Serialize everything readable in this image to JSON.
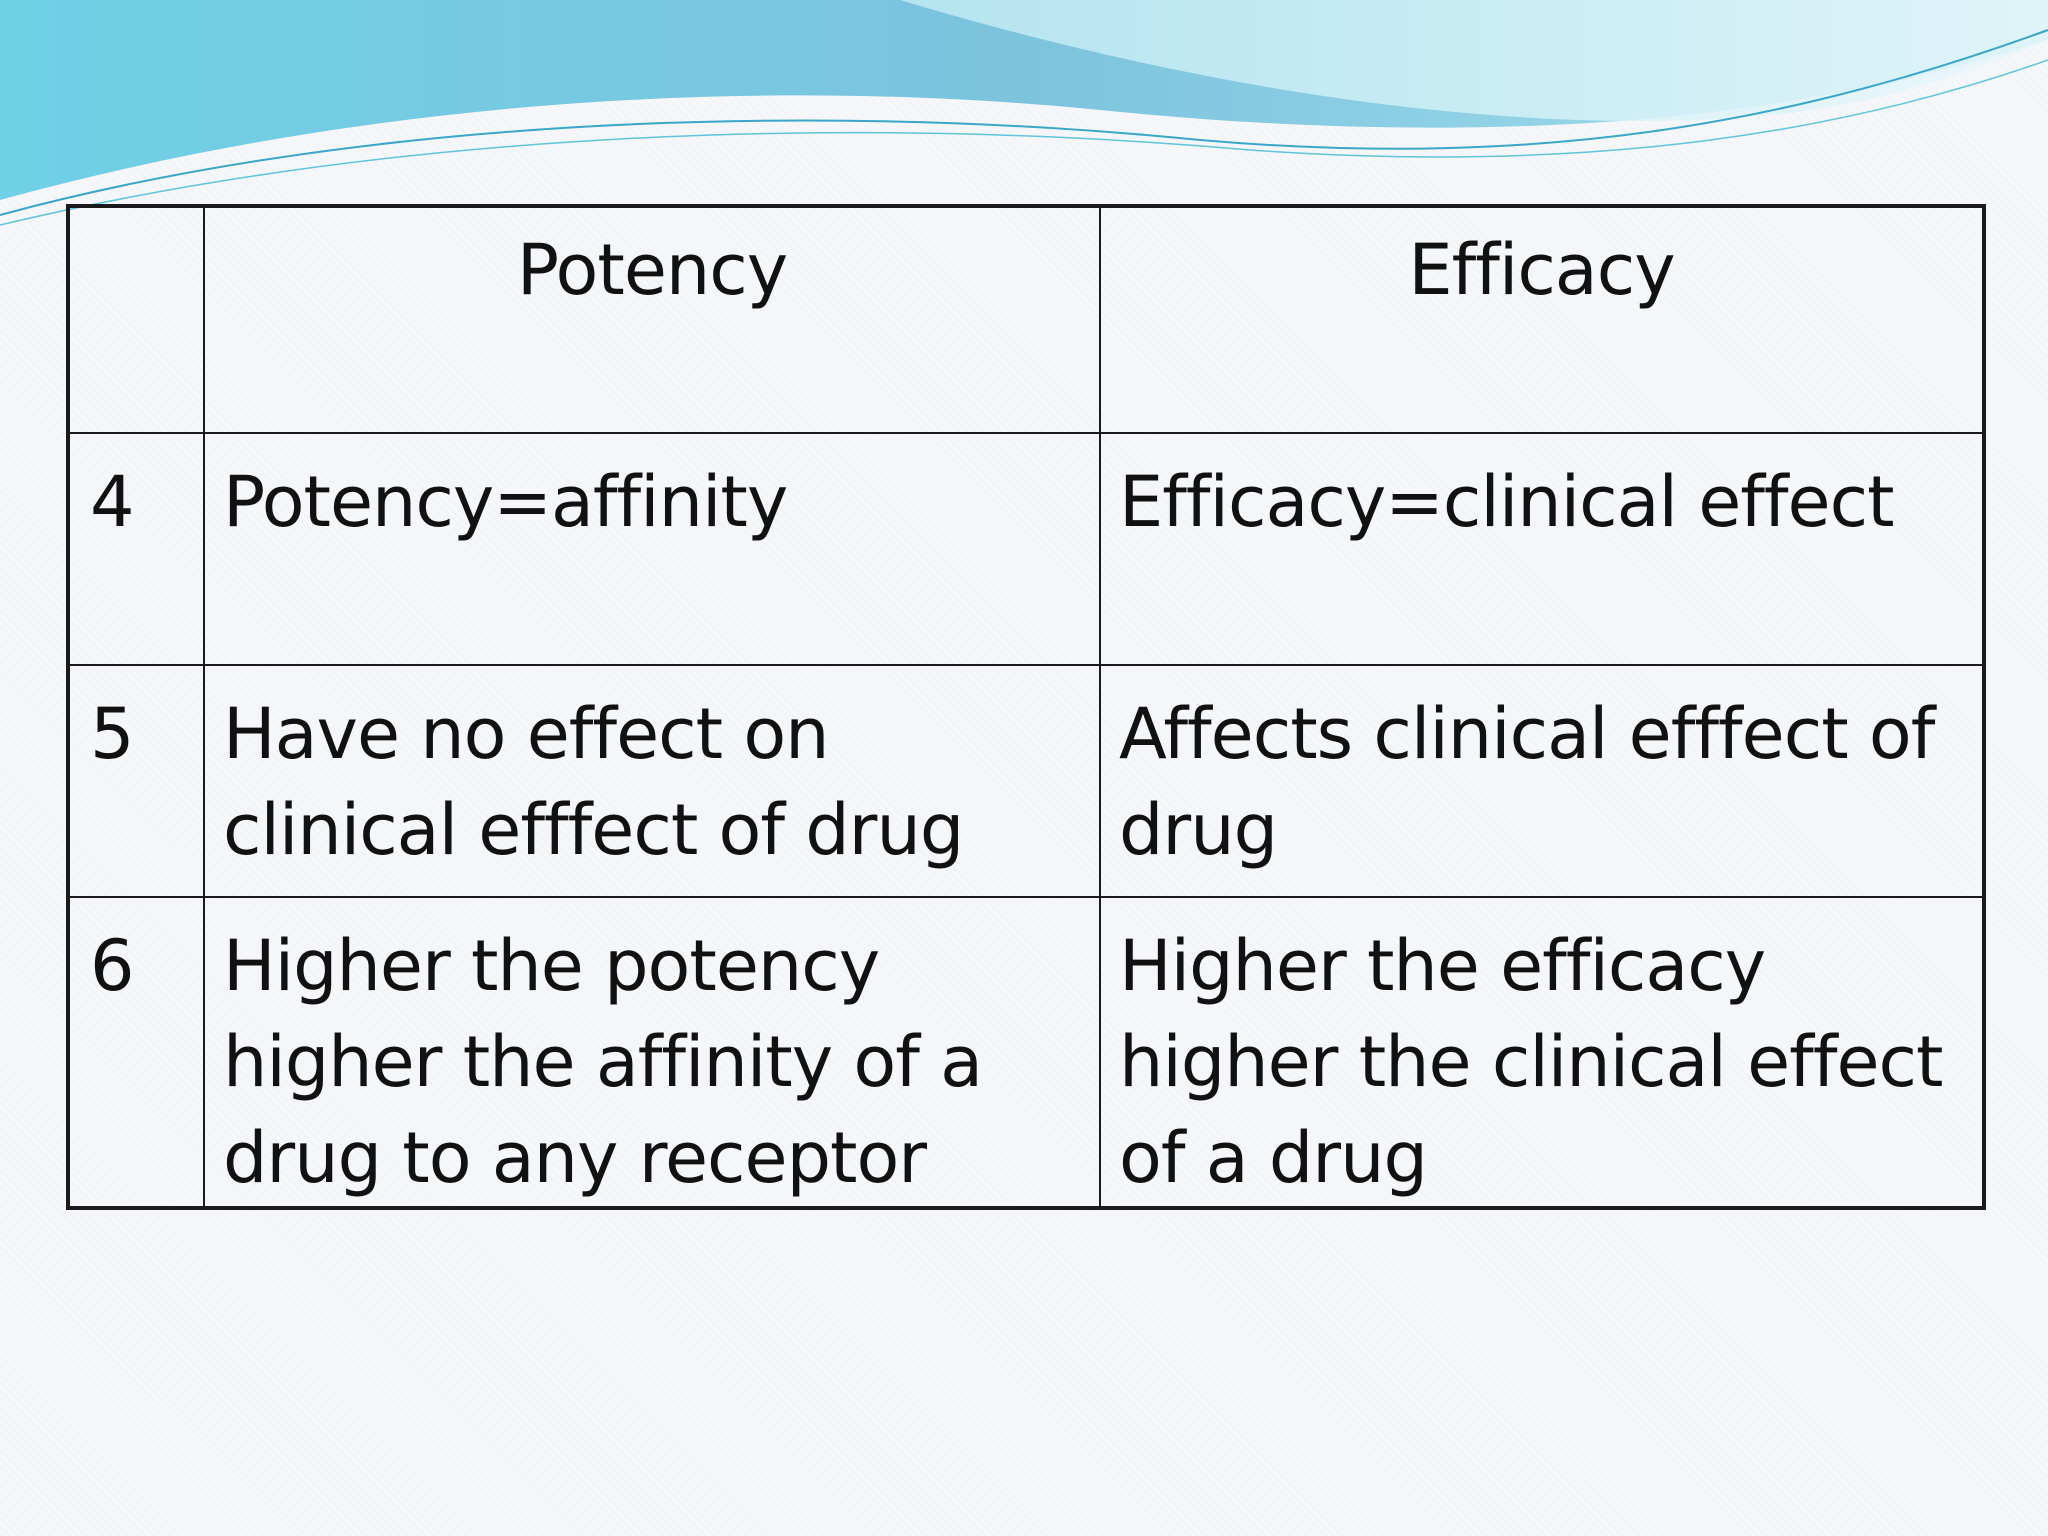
{
  "table": {
    "headers": [
      "",
      "Potency",
      "Efficacy"
    ],
    "rows": [
      {
        "num": "4",
        "potency": "Potency=affinity",
        "efficacy": "Efficacy=clinical effect"
      },
      {
        "num": "5",
        "potency": "Have no effect on clinical efffect of drug",
        "efficacy": "Affects clinical efffect of drug"
      },
      {
        "num": "6",
        "potency": "Higher the potency higher the affinity of a drug to any receptor",
        "efficacy": "Higher the efficacy higher the clinical effect of a drug"
      }
    ]
  },
  "theme": {
    "wave_colors": [
      "#5fc4dc",
      "#8fd8e8",
      "#3aa6c8"
    ],
    "border_color": "#1a1a1a",
    "background": "#f5f7fa"
  }
}
